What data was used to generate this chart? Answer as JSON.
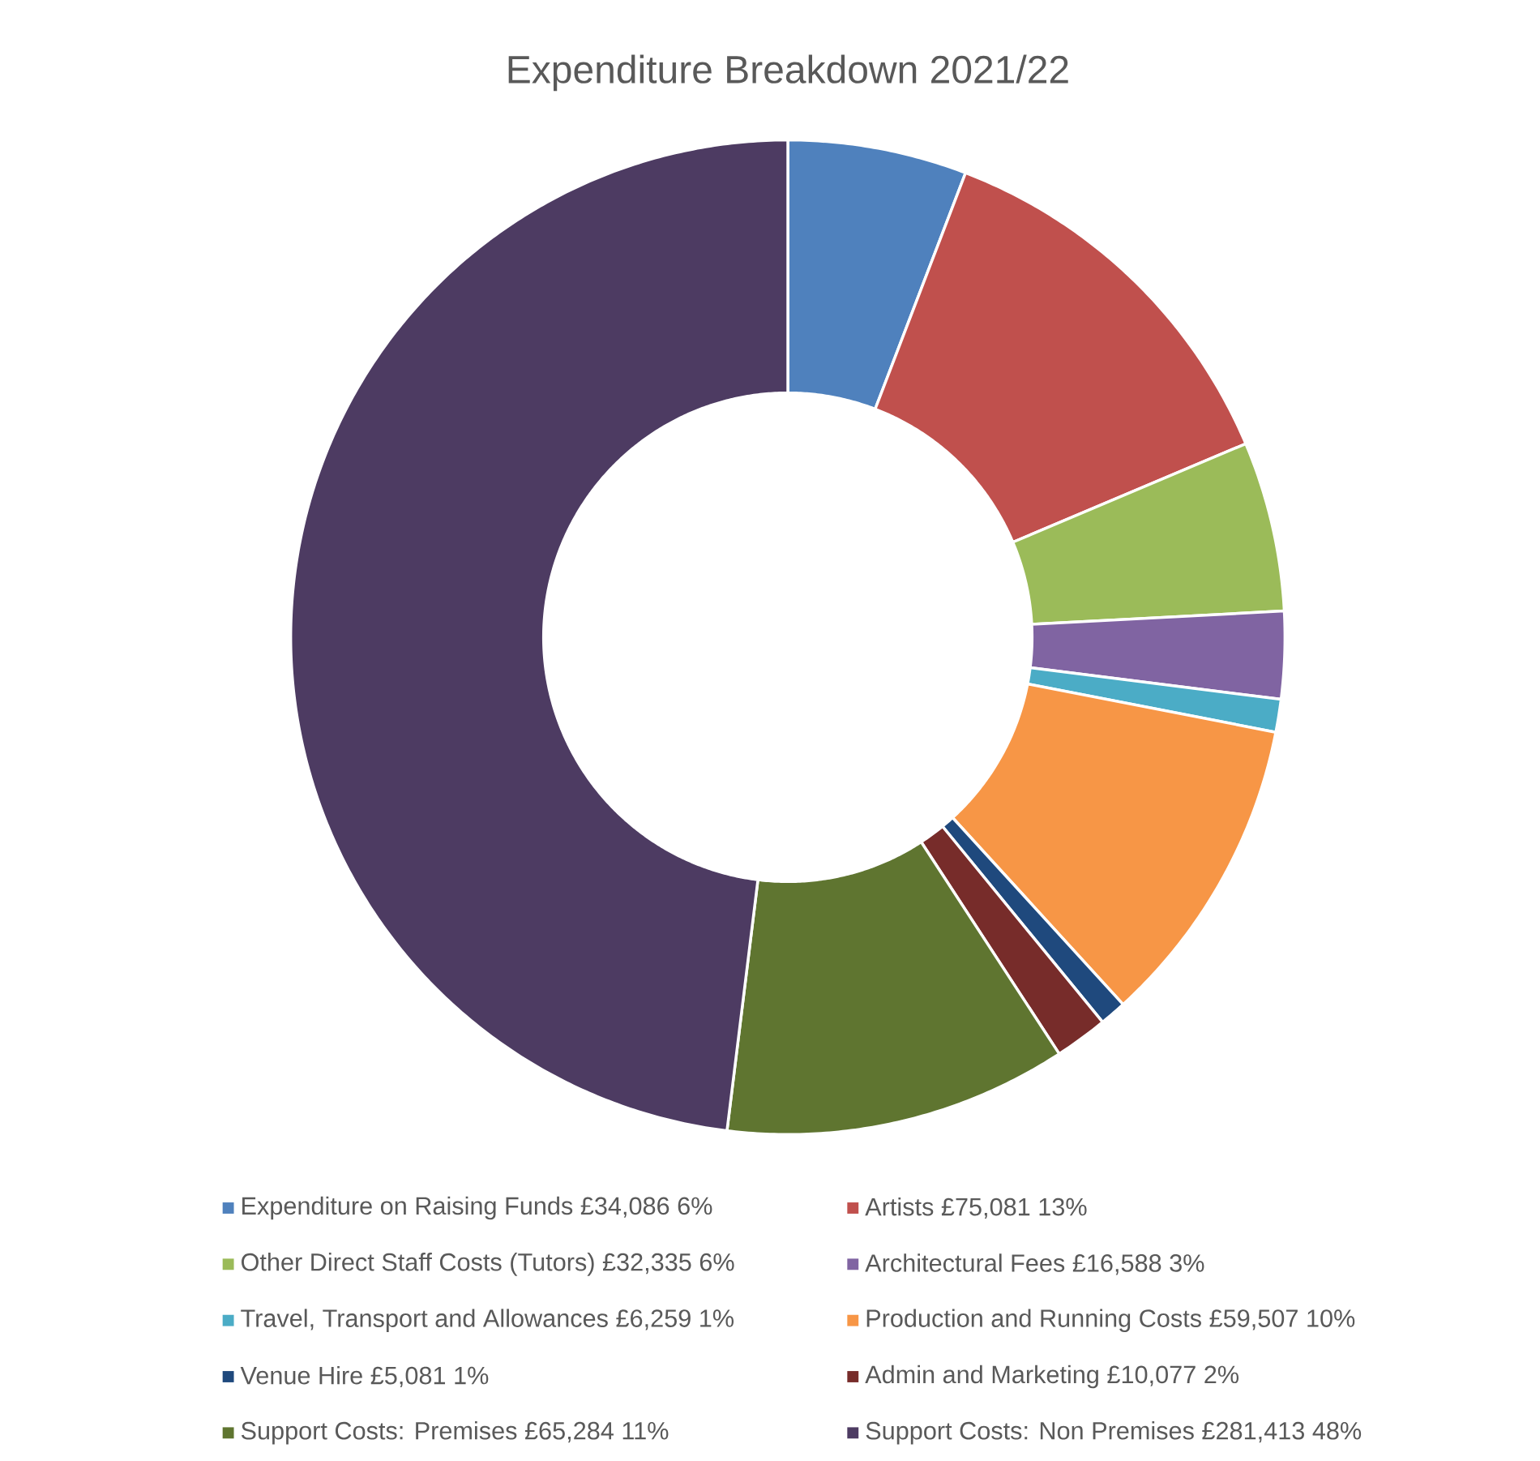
{
  "chart_data": {
    "type": "donut",
    "title": "Expenditure Breakdown 2021/22",
    "categories": [
      "Expenditure on Raising Funds £34,086 6%",
      "Artists £75,081 13%",
      "Other Direct Staff Costs (Tutors) £32,335 6%",
      "Architectural Fees £16,588 3%",
      "Travel, Transport and Allowances £6,259 1%",
      "Production and Running Costs £59,507 10%",
      "Venue Hire £5,081 1%",
      "Admin and Marketing £10,077 2%",
      "Support Costs: Premises £65,284 11%",
      "Support Costs: Non Premises £281,413 48%"
    ],
    "values": [
      34086,
      75081,
      32335,
      16588,
      6259,
      59507,
      5081,
      10077,
      65284,
      281413
    ],
    "colors": [
      "#4f81bd",
      "#c0504d",
      "#9bbb59",
      "#8064a2",
      "#4bacc6",
      "#f79646",
      "#1f497d",
      "#772c2a",
      "#5f7530",
      "#4d3b62"
    ],
    "legend": "bottom"
  }
}
